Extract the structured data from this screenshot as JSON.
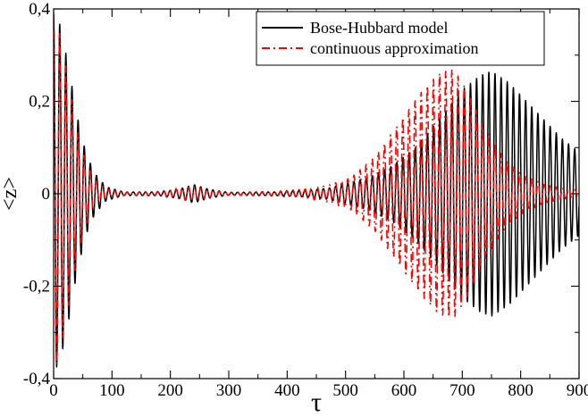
{
  "chart_data": {
    "type": "line",
    "xlabel": "τ",
    "ylabel": "<z>",
    "xlim": [
      0,
      900
    ],
    "ylim": [
      -0.4,
      0.4
    ],
    "grid": false,
    "legend_position": "top-right",
    "x_ticks": [
      {
        "value": 0,
        "label": "0"
      },
      {
        "value": 100,
        "label": "100"
      },
      {
        "value": 200,
        "label": "200"
      },
      {
        "value": 300,
        "label": "300"
      },
      {
        "value": 400,
        "label": "400"
      },
      {
        "value": 500,
        "label": "500"
      },
      {
        "value": 600,
        "label": "600"
      },
      {
        "value": 700,
        "label": "700"
      },
      {
        "value": 800,
        "label": "800"
      },
      {
        "value": 900,
        "label": "900"
      }
    ],
    "y_ticks": [
      {
        "value": 0.4,
        "label": "0,4"
      },
      {
        "value": 0.2,
        "label": "0,2"
      },
      {
        "value": 0,
        "label": "0"
      },
      {
        "value": -0.2,
        "label": "-0,2"
      },
      {
        "value": -0.4,
        "label": "-0,4"
      }
    ],
    "series": [
      {
        "name": "Bose-Hubbard model",
        "color": "#000000",
        "dash": "solid",
        "period": 10.5,
        "envelope": [
          [
            0,
            0.38
          ],
          [
            10,
            0.37
          ],
          [
            25,
            0.28
          ],
          [
            40,
            0.17
          ],
          [
            55,
            0.09
          ],
          [
            70,
            0.045
          ],
          [
            90,
            0.015
          ],
          [
            120,
            0.004
          ],
          [
            180,
            0.004
          ],
          [
            215,
            0.01
          ],
          [
            240,
            0.02
          ],
          [
            265,
            0.01
          ],
          [
            300,
            0.003
          ],
          [
            380,
            0.004
          ],
          [
            430,
            0.007
          ],
          [
            470,
            0.012
          ],
          [
            500,
            0.022
          ],
          [
            540,
            0.035
          ],
          [
            580,
            0.06
          ],
          [
            620,
            0.1
          ],
          [
            660,
            0.16
          ],
          [
            700,
            0.225
          ],
          [
            730,
            0.255
          ],
          [
            750,
            0.265
          ],
          [
            780,
            0.24
          ],
          [
            810,
            0.2
          ],
          [
            840,
            0.16
          ],
          [
            870,
            0.12
          ],
          [
            900,
            0.09
          ]
        ]
      },
      {
        "name": "continuous approximation",
        "color": "#ff0000",
        "dash": "dash-dot",
        "period": 10.5,
        "envelope": [
          [
            0,
            0.39
          ],
          [
            10,
            0.35
          ],
          [
            25,
            0.25
          ],
          [
            40,
            0.14
          ],
          [
            55,
            0.07
          ],
          [
            70,
            0.03
          ],
          [
            90,
            0.01
          ],
          [
            120,
            0.003
          ],
          [
            180,
            0.005
          ],
          [
            215,
            0.012
          ],
          [
            240,
            0.016
          ],
          [
            265,
            0.008
          ],
          [
            300,
            0.003
          ],
          [
            380,
            0.005
          ],
          [
            430,
            0.01
          ],
          [
            470,
            0.018
          ],
          [
            510,
            0.035
          ],
          [
            550,
            0.08
          ],
          [
            590,
            0.15
          ],
          [
            630,
            0.22
          ],
          [
            660,
            0.26
          ],
          [
            685,
            0.27
          ],
          [
            710,
            0.22
          ],
          [
            740,
            0.14
          ],
          [
            770,
            0.08
          ],
          [
            800,
            0.045
          ],
          [
            840,
            0.02
          ],
          [
            880,
            0.01
          ],
          [
            900,
            0.008
          ]
        ]
      }
    ]
  }
}
